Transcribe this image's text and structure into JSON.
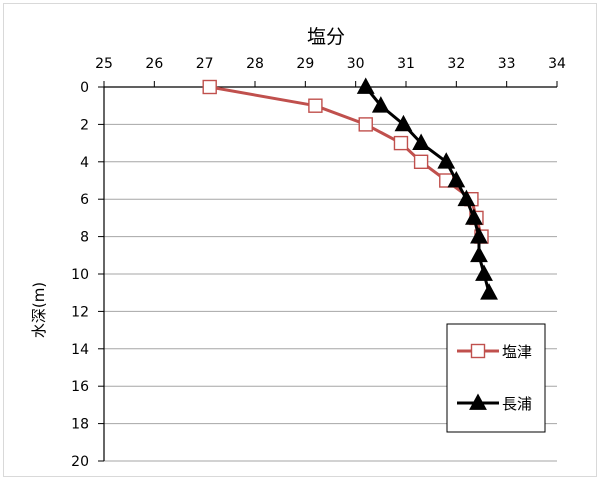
{
  "chart_data": {
    "type": "line",
    "title": "塩分",
    "xlabel": "",
    "ylabel": "水深(m)",
    "x_axis_position": "top",
    "y_axis_inverted": true,
    "xlim": [
      25,
      34
    ],
    "ylim": [
      0,
      20
    ],
    "x_ticks": [
      "25",
      "26",
      "27",
      "28",
      "29",
      "30",
      "31",
      "32",
      "33",
      "34"
    ],
    "y_ticks": [
      "0",
      "2",
      "4",
      "6",
      "8",
      "10",
      "12",
      "14",
      "16",
      "18",
      "20"
    ],
    "grid": "horizontal",
    "legend": "right",
    "series": [
      {
        "name": "塩津",
        "color": "#c0504d",
        "marker": "open-square",
        "points": [
          {
            "x": 27.1,
            "y": 0
          },
          {
            "x": 29.2,
            "y": 1
          },
          {
            "x": 30.2,
            "y": 2
          },
          {
            "x": 30.9,
            "y": 3
          },
          {
            "x": 31.3,
            "y": 4
          },
          {
            "x": 31.8,
            "y": 5
          },
          {
            "x": 32.3,
            "y": 6
          },
          {
            "x": 32.4,
            "y": 7
          },
          {
            "x": 32.5,
            "y": 8
          }
        ]
      },
      {
        "name": "長浦",
        "color": "#000000",
        "marker": "filled-triangle",
        "points": [
          {
            "x": 30.2,
            "y": 0
          },
          {
            "x": 30.5,
            "y": 1
          },
          {
            "x": 30.95,
            "y": 2
          },
          {
            "x": 31.3,
            "y": 3
          },
          {
            "x": 31.8,
            "y": 4
          },
          {
            "x": 32.0,
            "y": 5
          },
          {
            "x": 32.2,
            "y": 6
          },
          {
            "x": 32.35,
            "y": 7
          },
          {
            "x": 32.45,
            "y": 8
          },
          {
            "x": 32.45,
            "y": 9
          },
          {
            "x": 32.55,
            "y": 10
          },
          {
            "x": 32.65,
            "y": 11
          }
        ]
      }
    ]
  }
}
